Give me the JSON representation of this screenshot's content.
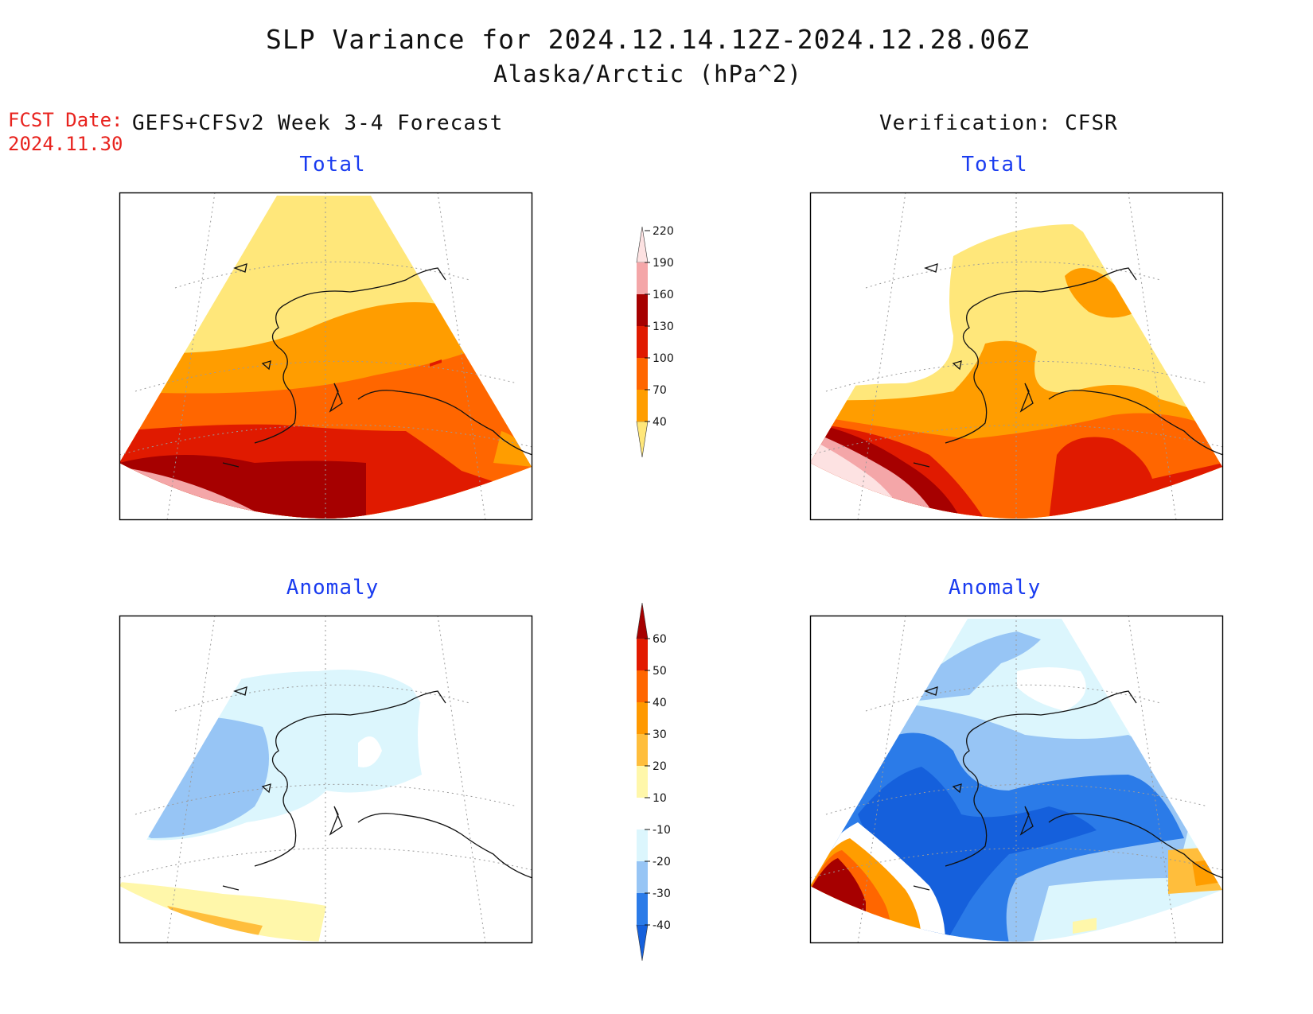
{
  "header": {
    "title": "SLP Variance for 2024.12.14.12Z-2024.12.28.06Z",
    "subtitle": "Alaska/Arctic (hPa^2)",
    "fcst_label": "FCST Date:",
    "fcst_date": "2024.11.30",
    "left_heading": "GEFS+CFSv2 Week 3-4 Forecast",
    "right_heading": "Verification: CFSR"
  },
  "panels": {
    "top_left": "Total",
    "top_right": "Total",
    "bottom_left": "Anomaly",
    "bottom_right": "Anomaly"
  },
  "colorbars": {
    "total": {
      "labels": [
        "40",
        "70",
        "100",
        "130",
        "160",
        "190",
        "220"
      ],
      "colors": [
        "#ffe77a",
        "#ff9d00",
        "#ff6600",
        "#e01a00",
        "#a60000",
        "#f4a6a8",
        "#fde2e2"
      ]
    },
    "anomaly": {
      "labels": [
        "-40",
        "-30",
        "-20",
        "-10",
        "10",
        "20",
        "30",
        "40",
        "50",
        "60"
      ],
      "colors": [
        "#1560dc",
        "#2b7be8",
        "#97c5f5",
        "#dcf6fd",
        "#ffffff",
        "#fff7aa",
        "#ffbe3c",
        "#ff9900",
        "#ff6600",
        "#e21a00",
        "#a60000"
      ]
    }
  }
}
